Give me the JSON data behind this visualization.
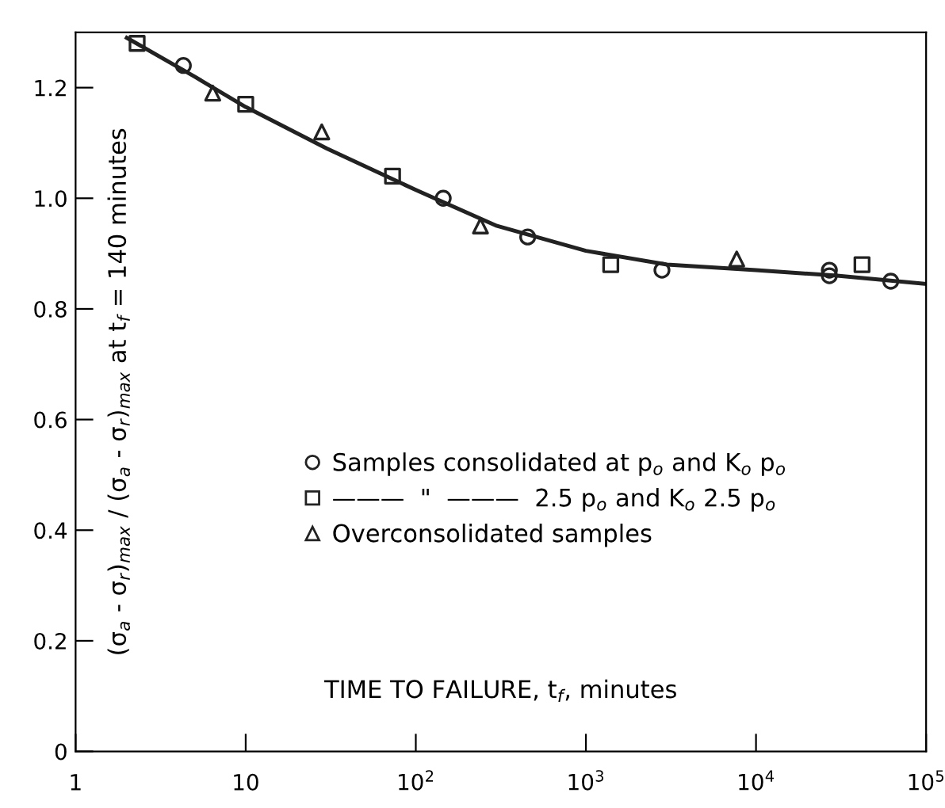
{
  "chart_data": {
    "type": "scatter",
    "xlabel": "TIME TO FAILURE, t$_{f}$, minutes",
    "ylabel": "(σ$_{a}$ - σ$_{r}$)$_{max}$ / (σ$_{a}$ - σ$_{r}$)$_{max}$ at t$_{f}$ = 140 minutes",
    "log": "x",
    "xlim": [
      1,
      100000
    ],
    "ylim": [
      0,
      1.3
    ],
    "xticks": [
      1,
      10,
      {
        "value": 100,
        "label": "10$^{2}$"
      },
      {
        "value": 1000,
        "label": "10$^{3}$"
      },
      {
        "value": 10000,
        "label": "10$^{4}$"
      },
      {
        "value": 100000,
        "label": "10$^{5}$"
      }
    ],
    "yticks": [
      0,
      0.2,
      0.4,
      0.6,
      0.8,
      {
        "value": 1,
        "label": "1.0"
      },
      1.2
    ],
    "grid": false,
    "legend": "center",
    "series": [
      {
        "name": "Samples consolidated at p$_{o}$ and K$_{o}$ p$_{o}$",
        "color": "#222222",
        "marker": "circle",
        "x": [
          4.3,
          145,
          455,
          2800,
          27000,
          27000,
          62000
        ],
        "values": [
          1.24,
          1.0,
          0.93,
          0.87,
          0.87,
          0.86,
          0.85
        ]
      },
      {
        "name": "———  \"  ———  2.5 p$_{o}$ and K$_{o}$ 2.5 p$_{o}$",
        "color": "#222222",
        "marker": "square",
        "x": [
          2.3,
          10,
          73,
          1400,
          42000
        ],
        "values": [
          1.28,
          1.17,
          1.04,
          0.88,
          0.88
        ]
      },
      {
        "name": "Overconsolidated samples",
        "color": "#222222",
        "marker": "triangle",
        "x": [
          6.4,
          28,
          240,
          7700
        ],
        "values": [
          1.19,
          1.12,
          0.95,
          0.89
        ]
      },
      {
        "type": "line",
        "color": "#222222",
        "marker": "none",
        "line_style": "solid",
        "x": [
          2,
          5,
          10,
          30,
          100,
          300,
          1000,
          3000,
          10000,
          30000,
          100000
        ],
        "values": [
          1.29,
          1.22,
          1.165,
          1.09,
          1.015,
          0.95,
          0.905,
          0.88,
          0.87,
          0.86,
          0.845
        ]
      }
    ]
  }
}
